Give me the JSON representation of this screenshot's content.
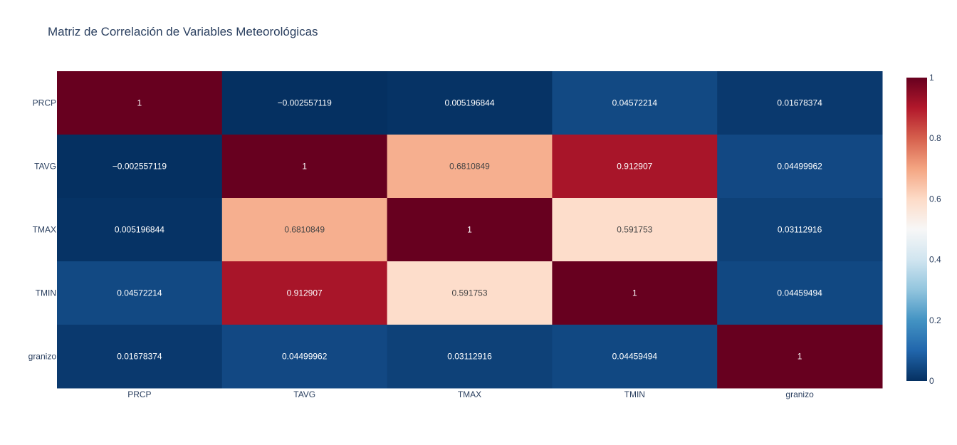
{
  "chart_data": {
    "type": "heatmap",
    "title": "Matriz de Correlación de Variables Meteorológicas",
    "x": [
      "PRCP",
      "TAVG",
      "TMAX",
      "TMIN",
      "granizo"
    ],
    "y": [
      "PRCP",
      "TAVG",
      "TMAX",
      "TMIN",
      "granizo"
    ],
    "z": [
      [
        1,
        -0.002557119,
        0.005196844,
        0.04572214,
        0.01678374
      ],
      [
        -0.002557119,
        1,
        0.6810849,
        0.912907,
        0.04499962
      ],
      [
        0.005196844,
        0.6810849,
        1,
        0.591753,
        0.03112916
      ],
      [
        0.04572214,
        0.912907,
        0.591753,
        1,
        0.04459494
      ],
      [
        0.01678374,
        0.04499962,
        0.03112916,
        0.04459494,
        1
      ]
    ],
    "text": [
      [
        "1",
        "−0.002557119",
        "0.005196844",
        "0.04572214",
        "0.01678374"
      ],
      [
        "−0.002557119",
        "1",
        "0.6810849",
        "0.912907",
        "0.04499962"
      ],
      [
        "0.005196844",
        "0.6810849",
        "1",
        "0.591753",
        "0.03112916"
      ],
      [
        "0.04572214",
        "0.912907",
        "0.591753",
        "1",
        "0.04459494"
      ],
      [
        "0.01678374",
        "0.04499962",
        "0.03112916",
        "0.04459494",
        "1"
      ]
    ],
    "colorscale": "RdBu (reversed)",
    "colorscale_stops": [
      [
        0.0,
        "#053061"
      ],
      [
        0.1,
        "#2166ac"
      ],
      [
        0.2,
        "#4393c3"
      ],
      [
        0.3,
        "#92c5de"
      ],
      [
        0.4,
        "#d1e5f0"
      ],
      [
        0.5,
        "#f7f7f7"
      ],
      [
        0.6,
        "#fddbc7"
      ],
      [
        0.7,
        "#f4a582"
      ],
      [
        0.8,
        "#d6604d"
      ],
      [
        0.9,
        "#b2182b"
      ],
      [
        1.0,
        "#67001f"
      ]
    ],
    "zmin": 0,
    "zmax": 1,
    "colorbar_ticks": [
      "0",
      "0.2",
      "0.4",
      "0.6",
      "0.8",
      "1"
    ],
    "colorbar_tick_values": [
      0,
      0.2,
      0.4,
      0.6,
      0.8,
      1
    ],
    "legend_placement": "right",
    "grid": false
  }
}
